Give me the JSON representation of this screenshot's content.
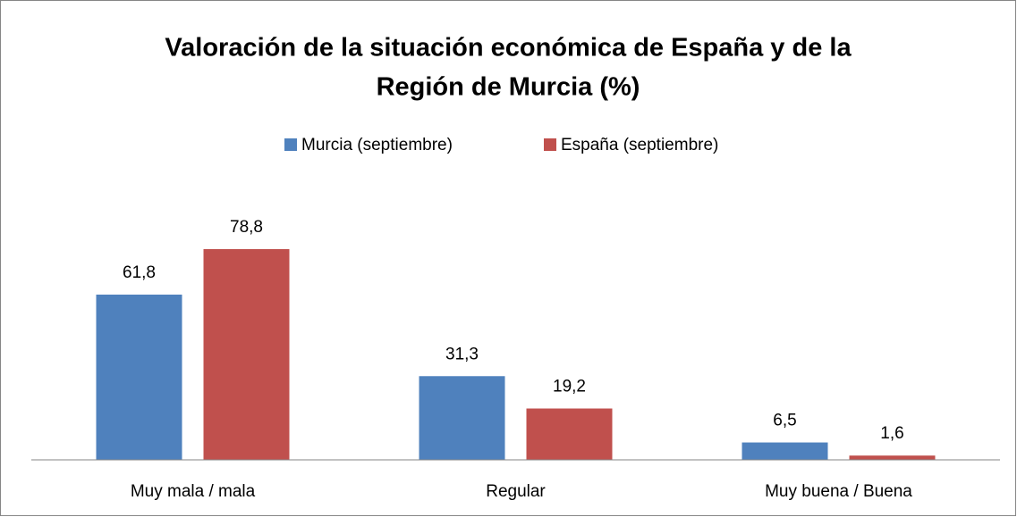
{
  "chart_data": {
    "type": "bar",
    "title": [
      "Valoración de la situación económica de España y de la",
      "Región de Murcia (%)"
    ],
    "categories": [
      "Muy mala / mala",
      "Regular",
      "Muy buena / Buena"
    ],
    "series": [
      {
        "name": "Murcia (septiembre)",
        "color": "#4f81bd",
        "values": [
          61.8,
          31.3,
          6.5
        ],
        "value_labels": [
          "61,8",
          "31,3",
          "6,5"
        ]
      },
      {
        "name": "España (septiembre)",
        "color": "#c0504d",
        "values": [
          78.8,
          19.2,
          1.6
        ],
        "value_labels": [
          "78,8",
          "19,2",
          "1,6"
        ]
      }
    ],
    "legend": "top"
  }
}
